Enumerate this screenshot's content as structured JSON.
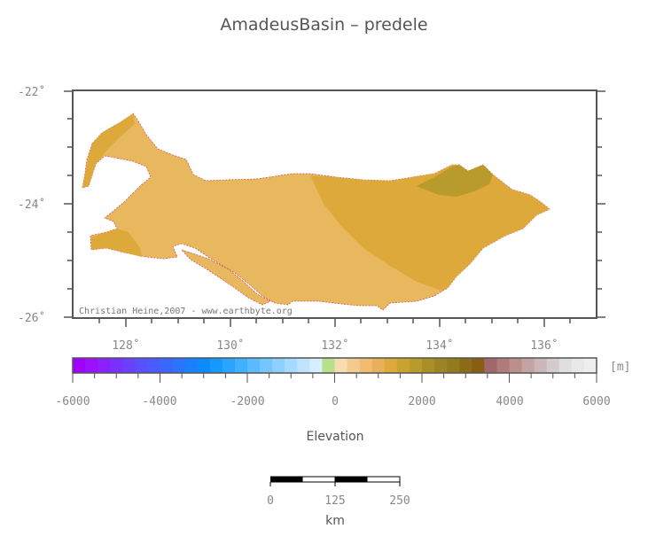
{
  "title": "AmadeusBasin – predele",
  "map": {
    "lat_labels": [
      "-22˚",
      "-24˚",
      "-26˚"
    ],
    "lon_labels": [
      "128˚",
      "130˚",
      "132˚",
      "134˚",
      "136˚"
    ],
    "credit": "Christian Heine,2007 - www.earthbyte.org",
    "colors": {
      "basin_light": "#e8b85e",
      "basin_mid": "#dca93a",
      "basin_dark": "#b99a2c",
      "outline": "#d9534f"
    }
  },
  "colorbar": {
    "unit": "[m]",
    "tick_labels": [
      "-6000",
      "-4000",
      "-2000",
      "0",
      "2000",
      "4000",
      "6000"
    ],
    "title": "Elevation",
    "range": [
      -6000,
      6000
    ]
  },
  "scalebar": {
    "tick_labels": [
      "0",
      "125",
      "250"
    ],
    "unit": "km"
  }
}
